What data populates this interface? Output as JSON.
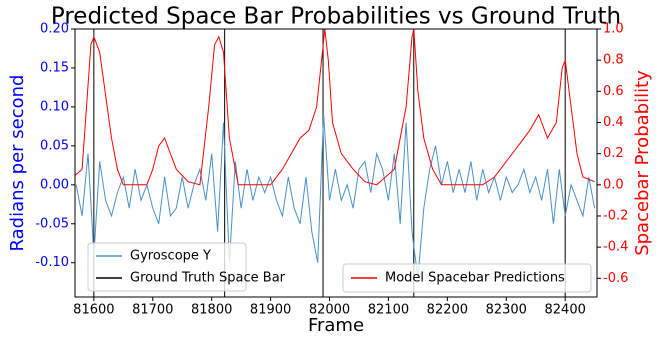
{
  "chart_data": {
    "type": "line",
    "title": "Predicted Space Bar Probabilities vs Ground Truth",
    "xlabel": "Frame",
    "ylabel": "Radians per second",
    "y2label": "Spacebar Probability",
    "xlim": [
      81568,
      82454
    ],
    "ylim": [
      -0.144,
      0.2
    ],
    "y2lim": [
      -0.72,
      1.0
    ],
    "xticks": [
      81600,
      81700,
      81800,
      81900,
      82000,
      82100,
      82200,
      82300,
      82400
    ],
    "yticks": [
      {
        "value": -0.1,
        "label": "-0.10"
      },
      {
        "value": -0.05,
        "label": "-0.05"
      },
      {
        "value": 0,
        "label": "0.00"
      },
      0.05,
      {
        "value": 0.1,
        "label": "0.10"
      },
      0.15,
      {
        "value": 0.2,
        "label": "0.20"
      }
    ],
    "y2ticks": [
      -0.6,
      -0.4,
      -0.2,
      {
        "value": 0,
        "label": "0.0"
      },
      0.2,
      0.4,
      0.6,
      0.8,
      {
        "value": 1,
        "label": "1.0"
      }
    ],
    "ylabel_color": "#0000ff",
    "y2label_color": "#ff0000",
    "series": [
      {
        "name": "Gyroscope Y",
        "color": "#4a90c8",
        "x": [
          81570,
          81580,
          81590,
          81600,
          81610,
          81620,
          81630,
          81640,
          81650,
          81660,
          81670,
          81680,
          81690,
          81700,
          81710,
          81720,
          81730,
          81740,
          81750,
          81760,
          81770,
          81780,
          81790,
          81800,
          81810,
          81820,
          81830,
          81840,
          81850,
          81860,
          81870,
          81880,
          81890,
          81900,
          81910,
          81920,
          81930,
          81940,
          81950,
          81960,
          81970,
          81980,
          81990,
          82000,
          82010,
          82020,
          82030,
          82040,
          82050,
          82060,
          82070,
          82080,
          82090,
          82100,
          82110,
          82120,
          82130,
          82140,
          82150,
          82160,
          82170,
          82180,
          82190,
          82200,
          82210,
          82220,
          82230,
          82240,
          82250,
          82260,
          82270,
          82280,
          82290,
          82300,
          82310,
          82320,
          82330,
          82340,
          82350,
          82360,
          82370,
          82380,
          82390,
          82400,
          82410,
          82420,
          82430,
          82440,
          82450
        ],
        "values": [
          0.0,
          -0.04,
          0.04,
          -0.09,
          0.03,
          -0.02,
          -0.04,
          -0.01,
          0.01,
          -0.03,
          0.02,
          -0.02,
          0.0,
          -0.03,
          -0.05,
          0.01,
          -0.04,
          -0.03,
          0.01,
          -0.03,
          0.0,
          0.02,
          -0.02,
          0.04,
          -0.06,
          0.08,
          -0.1,
          0.03,
          -0.03,
          0.02,
          -0.02,
          0.01,
          -0.01,
          0.01,
          -0.02,
          -0.04,
          0.01,
          -0.03,
          -0.05,
          0.01,
          -0.06,
          -0.1,
          0.09,
          -0.02,
          0.02,
          -0.02,
          0.0,
          -0.03,
          0.02,
          0.03,
          -0.01,
          0.04,
          0.02,
          -0.02,
          0.04,
          -0.05,
          0.08,
          -0.06,
          -0.12,
          -0.03,
          0.02,
          0.05,
          0.0,
          0.03,
          -0.01,
          0.02,
          -0.01,
          0.03,
          -0.02,
          0.02,
          -0.01,
          0.01,
          -0.02,
          0.01,
          -0.01,
          0.0,
          0.02,
          -0.01,
          0.01,
          -0.02,
          0.02,
          -0.05,
          0.02,
          -0.04,
          0.0,
          -0.02,
          -0.04,
          0.01,
          -0.03
        ]
      },
      {
        "name": "Model Spacebar Predictions",
        "color": "#ff0000",
        "axis": "y2",
        "x": [
          81568,
          81580,
          81595,
          81600,
          81610,
          81630,
          81640,
          81650,
          81690,
          81700,
          81710,
          81720,
          81730,
          81740,
          81760,
          81780,
          81795,
          81805,
          81812,
          81820,
          81830,
          81845,
          81900,
          81920,
          81950,
          81965,
          81978,
          81988,
          81992,
          81998,
          82005,
          82020,
          82040,
          82060,
          82080,
          82110,
          82130,
          82140,
          82143,
          82150,
          82160,
          82175,
          82190,
          82260,
          82280,
          82300,
          82320,
          82340,
          82355,
          82370,
          82385,
          82395,
          82400,
          82410,
          82420,
          82430,
          82450
        ],
        "values": [
          0.06,
          0.1,
          0.9,
          0.95,
          0.85,
          0.3,
          0.1,
          0.0,
          0.0,
          0.1,
          0.25,
          0.3,
          0.2,
          0.1,
          0.02,
          0.0,
          0.5,
          0.9,
          0.95,
          0.85,
          0.3,
          0.0,
          0.0,
          0.1,
          0.3,
          0.35,
          0.5,
          0.85,
          1.0,
          0.8,
          0.4,
          0.2,
          0.1,
          0.02,
          0.0,
          0.1,
          0.5,
          0.95,
          1.0,
          0.6,
          0.3,
          0.1,
          0.0,
          0.0,
          0.05,
          0.15,
          0.25,
          0.35,
          0.45,
          0.3,
          0.4,
          0.75,
          0.8,
          0.5,
          0.2,
          0.05,
          0.02
        ]
      }
    ],
    "ground_truth": {
      "name": "Ground Truth Space Bar",
      "color": "#000000",
      "x": [
        81600,
        81822,
        81989,
        82143,
        82400
      ]
    }
  }
}
